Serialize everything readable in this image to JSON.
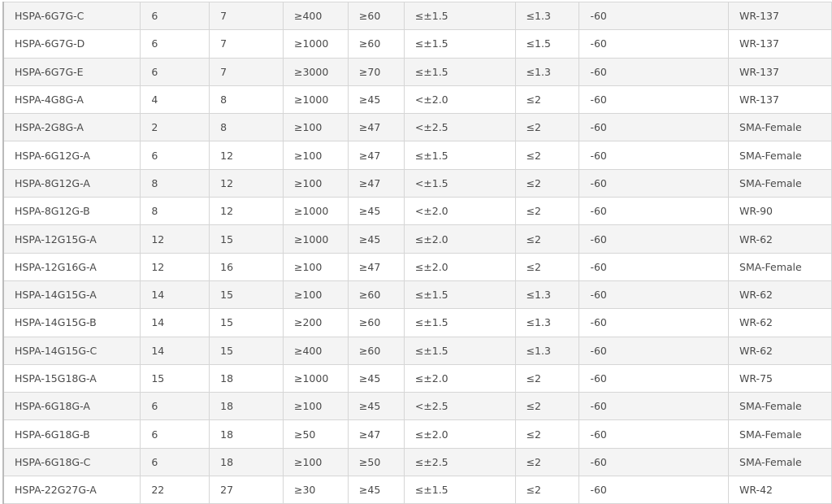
{
  "table": {
    "rows": [
      [
        "HSPA-6G7G-C",
        "6",
        "7",
        "≥400",
        "≥60",
        "≤±1.5",
        "≤1.3",
        "-60",
        "WR-137"
      ],
      [
        "HSPA-6G7G-D",
        "6",
        "7",
        "≥1000",
        "≥60",
        "≤±1.5",
        "≤1.5",
        "-60",
        "WR-137"
      ],
      [
        "HSPA-6G7G-E",
        "6",
        "7",
        "≥3000",
        "≥70",
        "≤±1.5",
        "≤1.3",
        "-60",
        "WR-137"
      ],
      [
        "HSPA-4G8G-A",
        "4",
        "8",
        "≥1000",
        "≥45",
        "<±2.0",
        "≤2",
        "-60",
        "WR-137"
      ],
      [
        "HSPA-2G8G-A",
        "2",
        "8",
        "≥100",
        "≥47",
        "<±2.5",
        "≤2",
        "-60",
        "SMA-Female"
      ],
      [
        "HSPA-6G12G-A",
        "6",
        "12",
        "≥100",
        "≥47",
        "≤±1.5",
        "≤2",
        "-60",
        "SMA-Female"
      ],
      [
        "HSPA-8G12G-A",
        "8",
        "12",
        "≥100",
        "≥47",
        "<±1.5",
        "≤2",
        "-60",
        "SMA-Female"
      ],
      [
        "HSPA-8G12G-B",
        "8",
        "12",
        "≥1000",
        "≥45",
        "<±2.0",
        "≤2",
        "-60",
        "WR-90"
      ],
      [
        "HSPA-12G15G-A",
        "12",
        "15",
        "≥1000",
        "≥45",
        "≤±2.0",
        "≤2",
        "-60",
        "WR-62"
      ],
      [
        "HSPA-12G16G-A",
        "12",
        "16",
        "≥100",
        "≥47",
        "≤±2.0",
        "≤2",
        "-60",
        "SMA-Female"
      ],
      [
        "HSPA-14G15G-A",
        "14",
        "15",
        "≥100",
        "≥60",
        "≤±1.5",
        "≤1.3",
        "-60",
        "WR-62"
      ],
      [
        "HSPA-14G15G-B",
        "14",
        "15",
        "≥200",
        "≥60",
        "≤±1.5",
        "≤1.3",
        "-60",
        "WR-62"
      ],
      [
        "HSPA-14G15G-C",
        "14",
        "15",
        "≥400",
        "≥60",
        "≤±1.5",
        "≤1.3",
        "-60",
        "WR-62"
      ],
      [
        "HSPA-15G18G-A",
        "15",
        "18",
        "≥1000",
        "≥45",
        "≤±2.0",
        "≤2",
        "-60",
        "WR-75"
      ],
      [
        "HSPA-6G18G-A",
        "6",
        "18",
        "≥100",
        "≥45",
        "<±2.5",
        "≤2",
        "-60",
        "SMA-Female"
      ],
      [
        "HSPA-6G18G-B",
        "6",
        "18",
        "≥50",
        "≥47",
        "≤±2.0",
        "≤2",
        "-60",
        "SMA-Female"
      ],
      [
        "HSPA-6G18G-C",
        "6",
        "18",
        "≥100",
        "≥50",
        "≤±2.5",
        "≤2",
        "-60",
        "SMA-Female"
      ],
      [
        "HSPA-22G27G-A",
        "22",
        "27",
        "≥30",
        "≥45",
        "≤±1.5",
        "≤2",
        "-60",
        "WR-42"
      ]
    ]
  }
}
